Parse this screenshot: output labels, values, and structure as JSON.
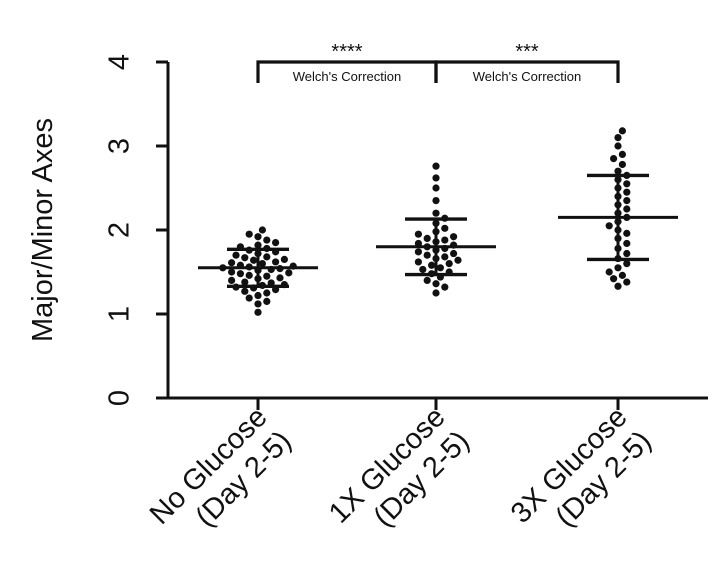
{
  "chart_data": {
    "type": "scatter",
    "subtype": "dot-plot-mean-sd",
    "ylabel": "Major/Minor Axes",
    "ylim": [
      0,
      4
    ],
    "yticks": [
      "0",
      "1",
      "2",
      "3",
      "4"
    ],
    "grid": false,
    "legend": "none",
    "categories": [
      {
        "line1": "No Glucose",
        "line2": "(Day 2-5)"
      },
      {
        "line1": "1X Glucose",
        "line2": "(Day 2-5)"
      },
      {
        "line1": "3X Glucose",
        "line2": "(Day 2-5)"
      }
    ],
    "groups": [
      {
        "mean": 1.55,
        "sd_low": 1.33,
        "sd_high": 1.77,
        "values": [
          1.02,
          1.12,
          1.15,
          1.19,
          1.22,
          1.25,
          1.27,
          1.29,
          1.31,
          1.32,
          1.34,
          1.35,
          1.37,
          1.38,
          1.4,
          1.42,
          1.43,
          1.45,
          1.46,
          1.48,
          1.49,
          1.5,
          1.52,
          1.53,
          1.54,
          1.55,
          1.56,
          1.57,
          1.58,
          1.6,
          1.61,
          1.62,
          1.64,
          1.65,
          1.67,
          1.68,
          1.7,
          1.72,
          1.74,
          1.76,
          1.78,
          1.8,
          1.82,
          1.85,
          1.88,
          1.92,
          1.95,
          2.0
        ]
      },
      {
        "mean": 1.8,
        "sd_low": 1.47,
        "sd_high": 2.13,
        "values": [
          1.25,
          1.32,
          1.36,
          1.4,
          1.44,
          1.48,
          1.5,
          1.53,
          1.55,
          1.58,
          1.6,
          1.62,
          1.64,
          1.66,
          1.68,
          1.7,
          1.72,
          1.74,
          1.76,
          1.78,
          1.8,
          1.82,
          1.84,
          1.86,
          1.88,
          1.9,
          1.92,
          1.95,
          1.98,
          2.02,
          2.08,
          2.14,
          2.2,
          2.35,
          2.5,
          2.62,
          2.76
        ]
      },
      {
        "mean": 2.15,
        "sd_low": 1.65,
        "sd_high": 2.65,
        "values": [
          1.33,
          1.38,
          1.42,
          1.46,
          1.5,
          1.55,
          1.6,
          1.66,
          1.72,
          1.78,
          1.84,
          1.9,
          1.96,
          2.0,
          2.05,
          2.1,
          2.15,
          2.2,
          2.25,
          2.3,
          2.35,
          2.4,
          2.45,
          2.5,
          2.55,
          2.6,
          2.65,
          2.7,
          2.78,
          2.85,
          2.9,
          3.0,
          3.1,
          3.18
        ]
      }
    ],
    "comparisons": [
      {
        "from": 0,
        "to": 1,
        "stars": "****",
        "note": "Welch's Correction"
      },
      {
        "from": 1,
        "to": 2,
        "stars": "***",
        "note": "Welch's Correction"
      }
    ]
  }
}
